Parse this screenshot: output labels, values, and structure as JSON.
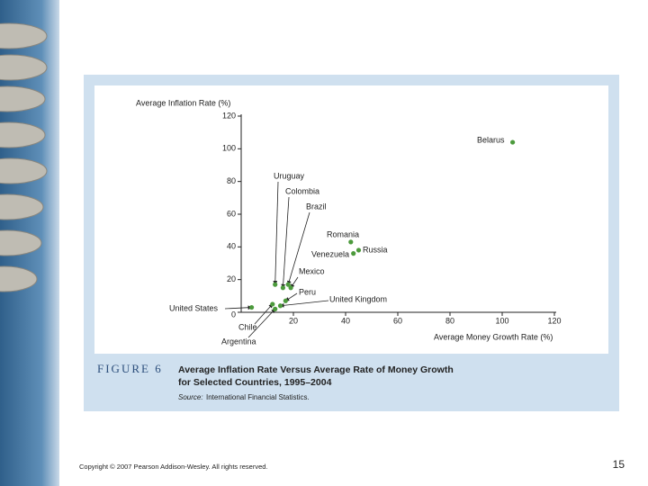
{
  "chart_data": {
    "type": "scatter",
    "figure_label": "FIGURE 6",
    "title": [
      "Average Inflation Rate Versus Average Rate of Money Growth",
      "for Selected Countries, 1995–2004"
    ],
    "source_label": "Source:",
    "source": "International Financial Statistics.",
    "y_label": "Average Inflation Rate (%)",
    "x_label": "Average Money Growth Rate (%)",
    "point_labels": [
      "United States",
      "Chile",
      "Argentina",
      "United Kingdom",
      "Peru",
      "Mexico",
      "Brazil",
      "Colombia",
      "Uruguay",
      "Venezuela",
      "Russia",
      "Romania",
      "Belarus"
    ],
    "x": [
      4,
      12,
      13,
      15,
      17,
      19,
      18,
      16,
      13,
      43,
      45,
      42,
      104
    ],
    "values": [
      3,
      5,
      2,
      4,
      7,
      15,
      17,
      15,
      17,
      36,
      38,
      43,
      104
    ],
    "color": "#4c9a3c",
    "xlim": [
      0,
      120
    ],
    "xticks": [
      20,
      40,
      60,
      80,
      100,
      120
    ],
    "ylim": [
      0,
      120
    ],
    "yticks": [
      0,
      20,
      40,
      60,
      80,
      100,
      120
    ]
  },
  "footer": {
    "copyright": "Copyright © 2007 Pearson Addison-Wesley. All rights reserved.",
    "page_number": "15"
  }
}
